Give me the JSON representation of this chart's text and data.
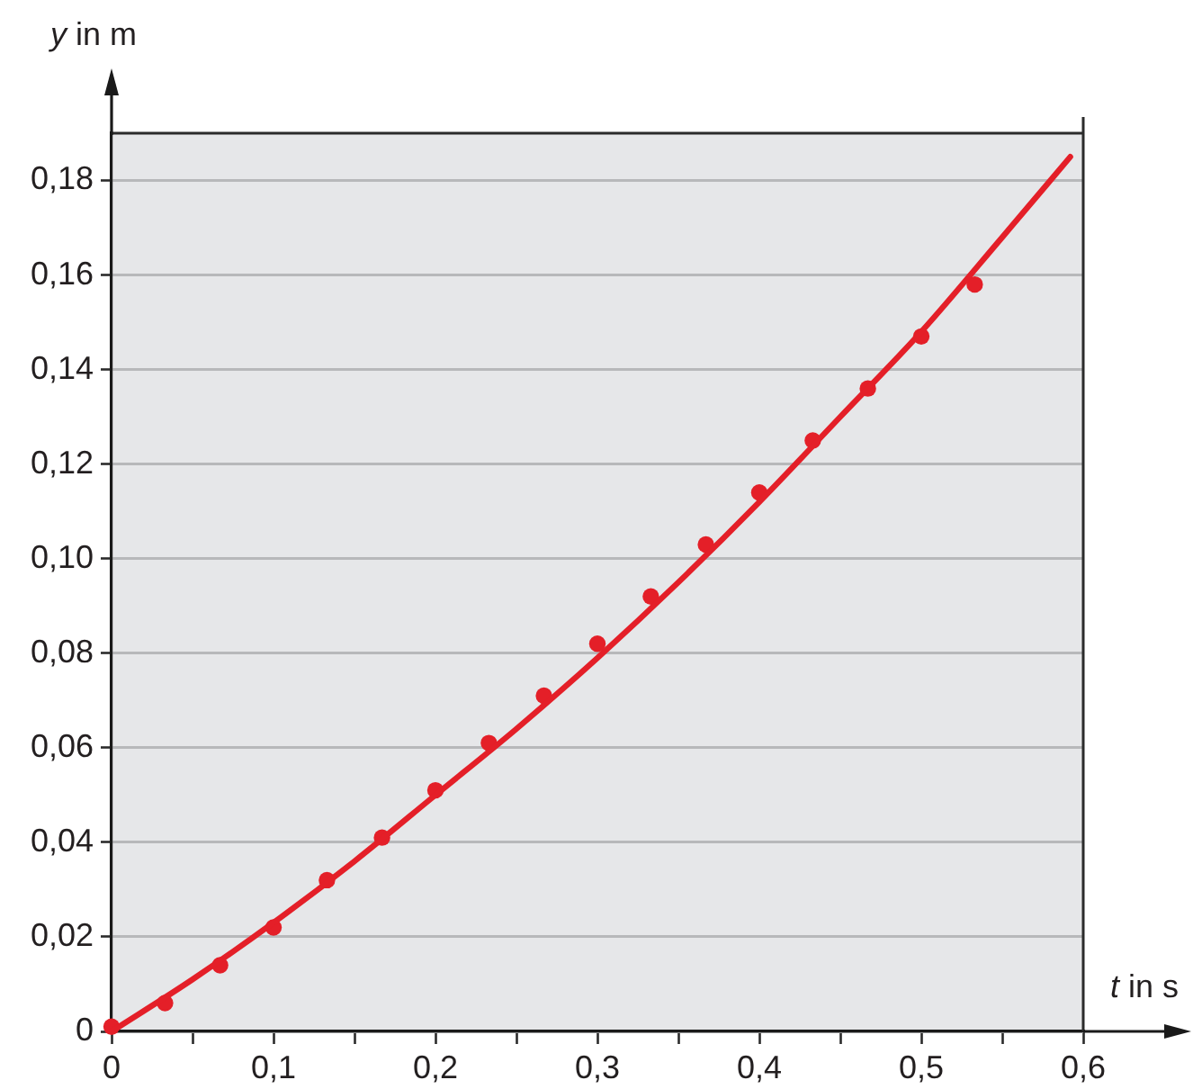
{
  "chart_data": {
    "type": "scatter",
    "xlabel": "t in s",
    "ylabel": "y in m",
    "xlim": [
      0,
      0.6
    ],
    "ylim": [
      0,
      0.19
    ],
    "xticks": [
      0,
      {
        "value": 0.05,
        "label": null
      },
      {
        "value": 0.1,
        "label": "0,1"
      },
      {
        "value": 0.15,
        "label": null
      },
      {
        "value": 0.2,
        "label": "0,2"
      },
      {
        "value": 0.25,
        "label": null
      },
      {
        "value": 0.3,
        "label": "0,3"
      },
      {
        "value": 0.35,
        "label": null
      },
      {
        "value": 0.4,
        "label": "0,4"
      },
      {
        "value": 0.45,
        "label": null
      },
      {
        "value": 0.5,
        "label": "0,5"
      },
      {
        "value": 0.55,
        "label": null
      },
      {
        "value": 0.6,
        "label": "0,6"
      }
    ],
    "yticks": [
      0,
      {
        "value": 0.02,
        "label": "0,02"
      },
      {
        "value": 0.04,
        "label": "0,04"
      },
      {
        "value": 0.06,
        "label": "0,06"
      },
      {
        "value": 0.08,
        "label": "0,08"
      },
      {
        "value": 0.1,
        "label": "0,10"
      },
      {
        "value": 0.12,
        "label": "0,12"
      },
      {
        "value": 0.14,
        "label": "0,14"
      },
      {
        "value": 0.16,
        "label": "0,16"
      },
      {
        "value": 0.18,
        "label": "0,18"
      }
    ],
    "grid": "y",
    "marker": "circle",
    "series": [
      {
        "type": "line",
        "color": "#e41f28",
        "marker": "none",
        "line_style": "solid",
        "x": [
          0,
          0.05,
          0.1,
          0.15,
          0.2,
          0.25,
          0.3,
          0.35,
          0.4,
          0.45,
          0.5,
          0.55,
          0.592
        ],
        "values": [
          0,
          0.011,
          0.023,
          0.036,
          0.05,
          0.064,
          0.079,
          0.095,
          0.112,
          0.13,
          0.148,
          0.168,
          0.185
        ]
      },
      {
        "color": "#e41f28",
        "x": [
          0,
          0.033,
          0.067,
          0.1,
          0.133,
          0.167,
          0.2,
          0.233,
          0.267,
          0.3,
          0.333,
          0.367,
          0.4,
          0.433,
          0.467,
          0.5,
          0.533
        ],
        "values": [
          0.001,
          0.006,
          0.014,
          0.022,
          0.032,
          0.041,
          0.051,
          0.061,
          0.071,
          0.082,
          0.092,
          0.103,
          0.114,
          0.125,
          0.136,
          0.147,
          0.158
        ]
      }
    ]
  }
}
